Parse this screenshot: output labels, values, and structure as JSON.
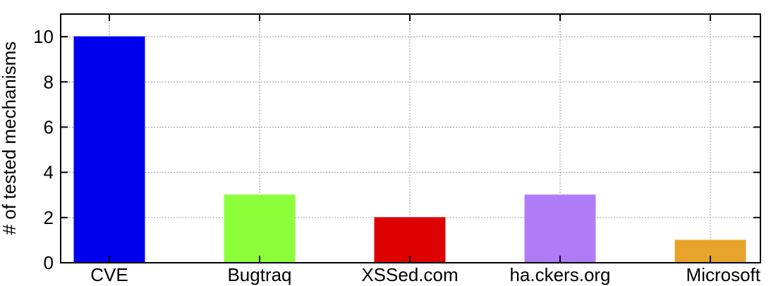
{
  "chart_data": {
    "type": "bar",
    "categories": [
      "CVE",
      "Bugtraq",
      "XSSed.com",
      "ha.ckers.org",
      "Microsoft"
    ],
    "values": [
      10,
      3,
      2,
      3,
      1
    ],
    "colors": [
      "#0000ee",
      "#8cff3a",
      "#dd0000",
      "#b07cf5",
      "#e8a42a"
    ],
    "title": "",
    "xlabel": "",
    "ylabel": "# of tested mechanisms",
    "ylim": [
      0,
      11
    ],
    "yticks": [
      0,
      2,
      4,
      6,
      8,
      10
    ],
    "grid": true,
    "legend": "none"
  }
}
